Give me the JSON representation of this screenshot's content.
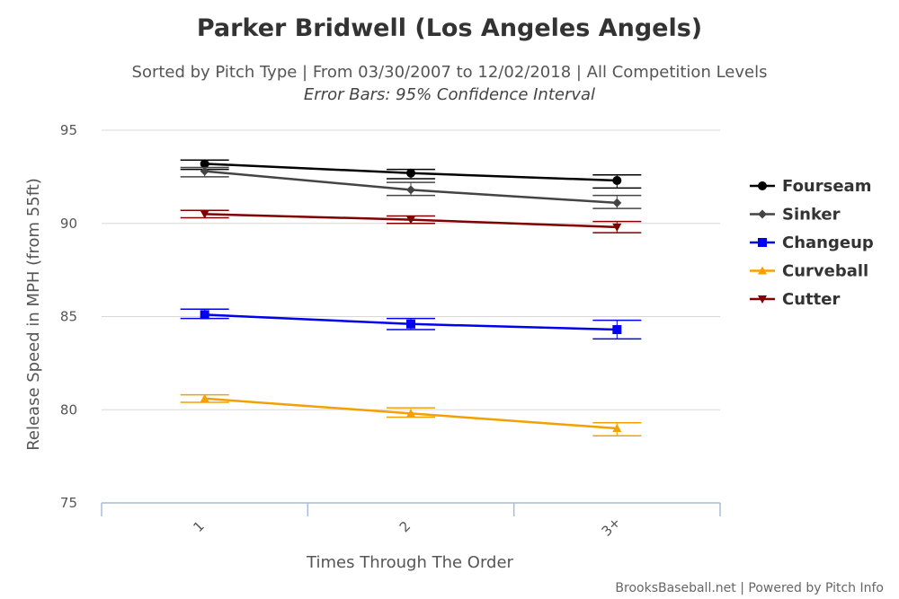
{
  "title": "Parker Bridwell (Los Angeles Angels)",
  "subtitle": "Sorted by Pitch Type | From 03/30/2007 to 12/02/2018 | All Competition Levels",
  "subtitle2": "Error Bars: 95% Confidence Interval",
  "credit": "BrooksBaseball.net | Powered by Pitch Info",
  "chart_data": {
    "type": "line",
    "categories": [
      "1",
      "2",
      "3+"
    ],
    "xlabel": "Times Through The Order",
    "ylabel": "Release Speed in MPH (from 55ft)",
    "ylim": [
      75,
      95
    ],
    "yticks": [
      75,
      80,
      85,
      90,
      95
    ],
    "grid": true,
    "legend_position": "right",
    "series": [
      {
        "name": "Fourseam",
        "color": "#000000",
        "marker": "circle",
        "values": [
          93.2,
          92.7,
          92.3
        ],
        "error_low": [
          92.9,
          92.4,
          91.9
        ],
        "error_high": [
          93.4,
          92.9,
          92.6
        ]
      },
      {
        "name": "Sinker",
        "color": "#444444",
        "marker": "diamond",
        "values": [
          92.8,
          91.8,
          91.1
        ],
        "error_low": [
          92.5,
          91.5,
          90.8
        ],
        "error_high": [
          93.0,
          92.2,
          91.5
        ]
      },
      {
        "name": "Changeup",
        "color": "#0000ee",
        "marker": "square",
        "values": [
          85.1,
          84.6,
          84.3
        ],
        "error_low": [
          84.9,
          84.3,
          83.8
        ],
        "error_high": [
          85.4,
          84.9,
          84.8
        ]
      },
      {
        "name": "Curveball",
        "color": "#f5a000",
        "marker": "triangle",
        "values": [
          80.6,
          79.8,
          79.0
        ],
        "error_low": [
          80.4,
          79.6,
          78.6
        ],
        "error_high": [
          80.8,
          80.1,
          79.3
        ]
      },
      {
        "name": "Cutter",
        "color": "#800000",
        "marker": "triangle-down",
        "values": [
          90.5,
          90.2,
          89.8
        ],
        "error_low": [
          90.3,
          90.0,
          89.5
        ],
        "error_high": [
          90.7,
          90.4,
          90.1
        ]
      }
    ]
  }
}
